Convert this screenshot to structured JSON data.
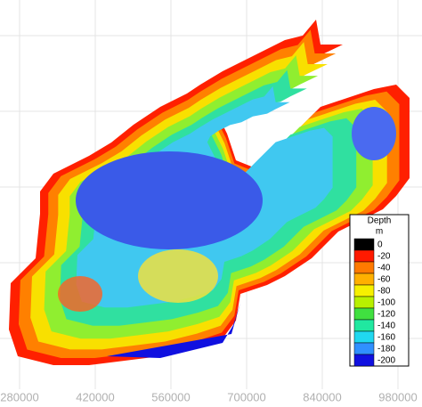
{
  "map": {
    "xticks": [
      280000,
      420000,
      560000,
      700000,
      840000,
      980000
    ],
    "legend": {
      "title": "Depth",
      "unit": "m",
      "levels": [
        0,
        -20,
        -40,
        -60,
        -80,
        -100,
        -120,
        -140,
        -160,
        -180,
        -200
      ],
      "colors": [
        "#000000",
        "#ff1a00",
        "#ff7a00",
        "#ffb000",
        "#f6f000",
        "#b8f000",
        "#40e040",
        "#20e8a0",
        "#20d8f0",
        "#3090ff",
        "#1010e0"
      ]
    }
  }
}
